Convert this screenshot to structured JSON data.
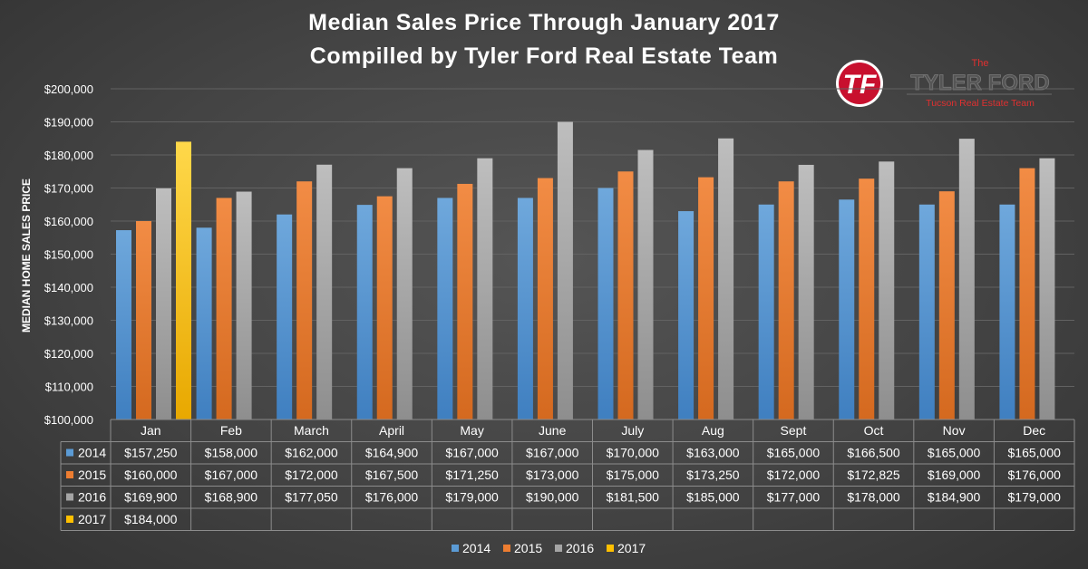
{
  "chart_data": {
    "type": "bar",
    "title": [
      "Median Sales Price Through January 2017",
      "Compilled by Tyler Ford Real Estate Team"
    ],
    "ylabel": "MEDIAN HOME SALES PRICE",
    "xlabel": "",
    "ylim": [
      100000,
      200000
    ],
    "yticks": [
      "$100,000",
      "$110,000",
      "$120,000",
      "$130,000",
      "$140,000",
      "$150,000",
      "$160,000",
      "$170,000",
      "$180,000",
      "$190,000",
      "$200,000"
    ],
    "grid": true,
    "legend_position": "bottom",
    "categories": [
      "Jan",
      "Feb",
      "March",
      "April",
      "May",
      "June",
      "July",
      "Aug",
      "Sept",
      "Oct",
      "Nov",
      "Dec"
    ],
    "series": [
      {
        "name": "2014",
        "color": "#5B9BD5",
        "values": [
          157250,
          158000,
          162000,
          164900,
          167000,
          167000,
          170000,
          163000,
          165000,
          166500,
          165000,
          165000
        ],
        "labels": [
          "$157,250",
          "$158,000",
          "$162,000",
          "$164,900",
          "$167,000",
          "$167,000",
          "$170,000",
          "$163,000",
          "$165,000",
          "$166,500",
          "$165,000",
          "$165,000"
        ]
      },
      {
        "name": "2015",
        "color": "#ED7D31",
        "values": [
          160000,
          167000,
          172000,
          167500,
          171250,
          173000,
          175000,
          173250,
          172000,
          172825,
          169000,
          176000
        ],
        "labels": [
          "$160,000",
          "$167,000",
          "$172,000",
          "$167,500",
          "$171,250",
          "$173,000",
          "$175,000",
          "$173,250",
          "$172,000",
          "$172,825",
          "$169,000",
          "$176,000"
        ]
      },
      {
        "name": "2016",
        "color": "#A5A5A5",
        "values": [
          169900,
          168900,
          177050,
          176000,
          179000,
          190000,
          181500,
          185000,
          177000,
          178000,
          184900,
          179000
        ],
        "labels": [
          "$169,900",
          "$168,900",
          "$177,050",
          "$176,000",
          "$179,000",
          "$190,000",
          "$181,500",
          "$185,000",
          "$177,000",
          "$178,000",
          "$184,900",
          "$179,000"
        ]
      },
      {
        "name": "2017",
        "color": "#FFC000",
        "values": [
          184000,
          null,
          null,
          null,
          null,
          null,
          null,
          null,
          null,
          null,
          null,
          null
        ],
        "labels": [
          "$184,000",
          "",
          "",
          "",
          "",
          "",
          "",
          "",
          "",
          "",
          "",
          ""
        ]
      }
    ]
  },
  "logo": {
    "monogram": "TF",
    "the": "The",
    "name": "TYLER FORD",
    "tagline": "Tucson Real Estate Team"
  }
}
